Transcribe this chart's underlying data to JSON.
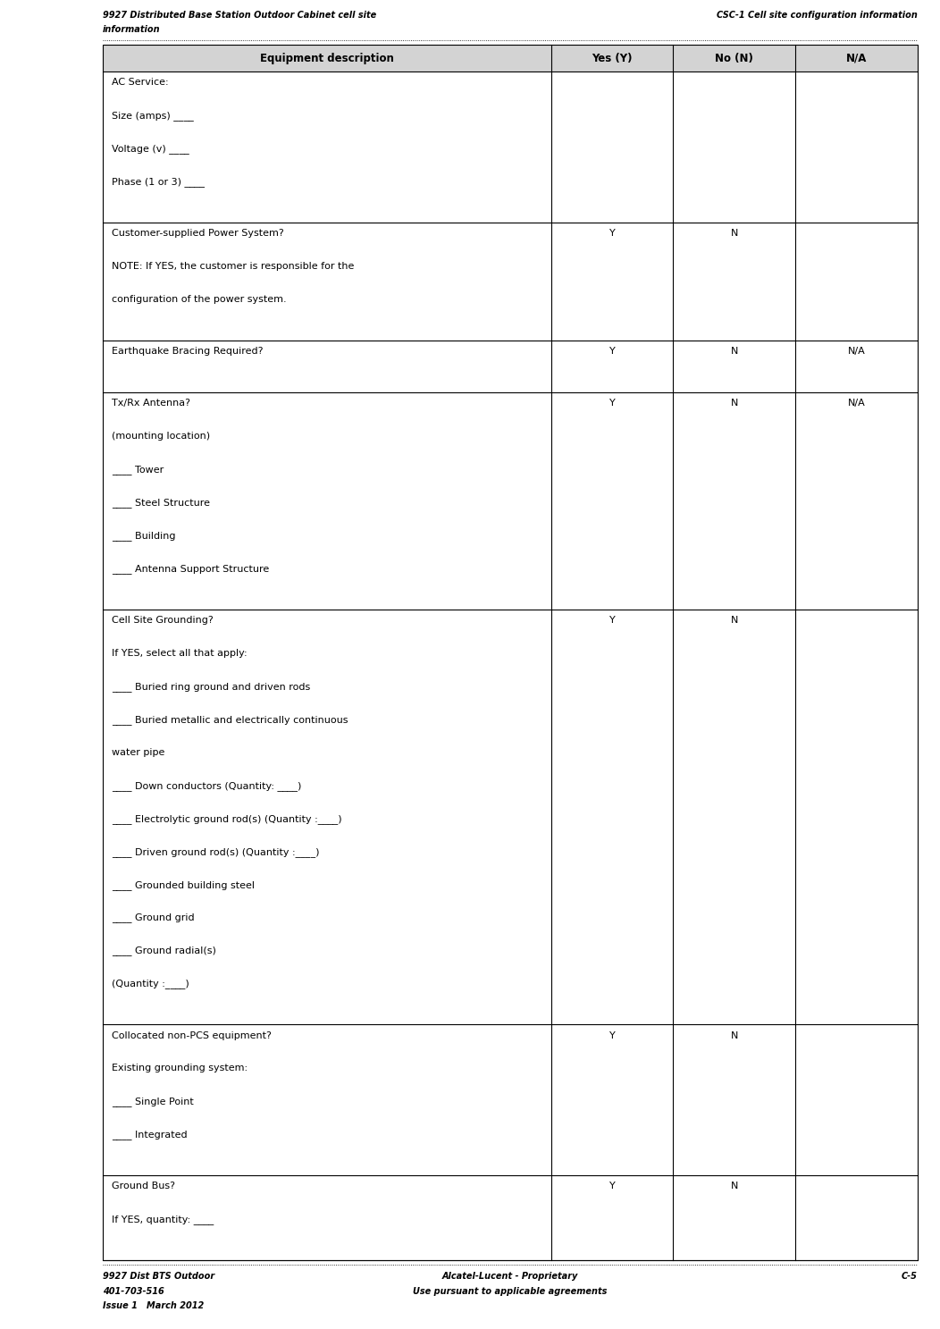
{
  "page_width": 10.52,
  "page_height": 14.87,
  "dpi": 100,
  "header_left_line1": "9927 Distributed Base Station Outdoor Cabinet cell site",
  "header_left_line2": "information",
  "header_right": "CSC-1 Cell site configuration information",
  "footer_left_line1": "9927 Dist BTS Outdoor",
  "footer_left_line2": "401-703-516",
  "footer_left_line3": "Issue 1   March 2012",
  "footer_center_line1": "Alcatel-Lucent - Proprietary",
  "footer_center_line2": "Use pursuant to applicable agreements",
  "footer_right": "C-5",
  "table_header": [
    "Equipment description",
    "Yes (Y)",
    "No (N)",
    "N/A"
  ],
  "header_bg": "#d3d3d3",
  "rows": [
    {
      "desc_lines": [
        "AC Service:",
        "Size (amps) ____",
        "Voltage (v) ____",
        "Phase (1 or 3) ____"
      ],
      "yes": "",
      "no": "",
      "na": ""
    },
    {
      "desc_lines": [
        "Customer-supplied Power System?",
        "NOTE: If YES, the customer is responsible for the",
        "configuration of the power system."
      ],
      "yes": "Y",
      "no": "N",
      "na": ""
    },
    {
      "desc_lines": [
        "Earthquake Bracing Required?"
      ],
      "yes": "Y",
      "no": "N",
      "na": "N/A"
    },
    {
      "desc_lines": [
        "Tx/Rx Antenna?",
        "(mounting location)",
        "____ Tower",
        "____ Steel Structure",
        "____ Building",
        "____ Antenna Support Structure"
      ],
      "yes": "Y",
      "no": "N",
      "na": "N/A"
    },
    {
      "desc_lines": [
        "Cell Site Grounding?",
        "If YES, select all that apply:",
        "____ Buried ring ground and driven rods",
        "____ Buried metallic and electrically continuous",
        "water pipe",
        "____ Down conductors (Quantity: ____)",
        "____ Electrolytic ground rod(s) (Quantity :____)",
        "____ Driven ground rod(s) (Quantity :____)",
        "____ Grounded building steel",
        "____ Ground grid",
        "____ Ground radial(s)",
        "(Quantity :____)"
      ],
      "yes": "Y",
      "no": "N",
      "na": ""
    },
    {
      "desc_lines": [
        "Collocated non-PCS equipment?",
        "Existing grounding system:",
        "____ Single Point",
        "____ Integrated"
      ],
      "yes": "Y",
      "no": "N",
      "na": ""
    },
    {
      "desc_lines": [
        "Ground Bus?",
        "If YES, quantity: ____"
      ],
      "yes": "Y",
      "no": "N",
      "na": ""
    }
  ]
}
